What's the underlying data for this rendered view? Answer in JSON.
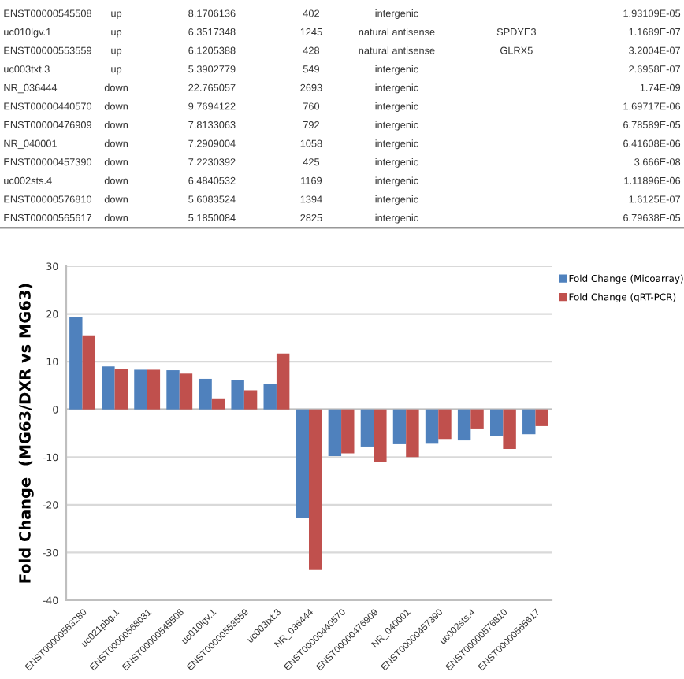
{
  "chart_data": {
    "type": "bar",
    "ylabel": "Fold Change  (MG63/DXR vs MG63)",
    "categories": [
      "ENST00000563280",
      "uc021pbg.1",
      "ENST00000568031",
      "ENST00000545508",
      "uc010lgv.1",
      "ENST00000553559",
      "uc003txt.3",
      "NR_036444",
      "ENST00000440570",
      "ENST00000476909",
      "NR_040001",
      "ENST00000457390",
      "uc002sts.4",
      "ENST00000576810",
      "ENST00000565617"
    ],
    "series": [
      {
        "name": "Fold Change (Micoarray)",
        "color": "#4f81bd",
        "values": [
          19.3,
          9,
          8.3,
          8.2,
          6.4,
          6.1,
          5.4,
          -22.8,
          -9.8,
          -7.8,
          -7.3,
          -7.2,
          -6.5,
          -5.6,
          -5.2
        ]
      },
      {
        "name": "Fold Change (qRT-PCR)",
        "color": "#c0504d",
        "values": [
          15.5,
          8.5,
          8.3,
          7.5,
          2.3,
          4,
          11.7,
          -33.5,
          -9.2,
          -11,
          -10,
          -6.2,
          -4,
          -8.3,
          -3.5
        ]
      }
    ],
    "ylim": [
      -40,
      30
    ],
    "yticks": [
      -40,
      -30,
      -20,
      -10,
      0,
      10,
      20,
      30
    ],
    "grid": "y",
    "legend": "top right",
    "annotations": [
      "ENST00000545508\tup\t8.1706136\t402\tintergenic\t\t1.93109E-05",
      "uc010lgv.1\tup\t6.3517348\t1245\tnatural antisense\tSPDYE3\t1.1689E-07",
      "ENST00000553559\tup\t6.1205388\t428\tnatural antisense\tGLRX5\t3.2004E-07",
      "uc003txt.3\tup\t5.3902779\t549\tintergenic\t\t2.6958E-07",
      "NR_036444\tdown\t22.765057\t2693\tintergenic\t\t1.74E-09",
      "ENST00000440570\tdown\t9.7694122\t760\tintergenic\t\t1.69717E-06",
      "ENST00000476909\tdown\t7.8133063\t792\tintergenic\t\t6.78589E-05",
      "NR_040001\tdown\t7.2909004\t1058\tintergenic\t\t6.41608E-06",
      "ENST00000457390\tdown\t7.2230392\t425\tintergenic\t\t3.666E-08",
      "uc002sts.4\tdown\t6.4840532\t1169\tintergenic\t\t1.11896E-06",
      "ENST00000576810\tdown\t5.6083524\t1394\tintergenic\t\t1.6125E-07",
      "ENST00000565617\tdown\t5.1850084\t2825\tintergenic\t\t6.79638E-05"
    ]
  }
}
